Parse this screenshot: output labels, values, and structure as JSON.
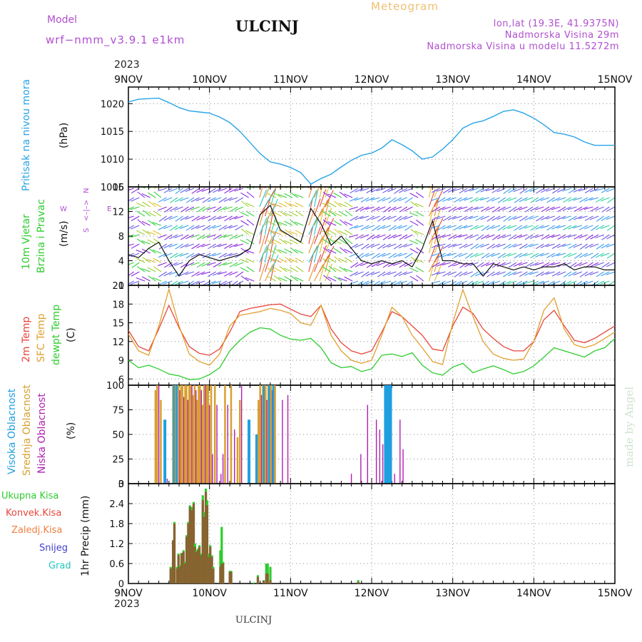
{
  "header": {
    "model_label": "Model",
    "model_name": "wrf−nmm_v3.9.1  e1km",
    "station": "ULCINJ",
    "product": "Meteogram",
    "lonlat": "lon,lat (19.3E, 41.9375N)",
    "elevation": "Nadmorska Visina 29m",
    "model_elevation": "Nadmorska Visina u modelu 11.5272m",
    "watermark": "made by Angel",
    "footer": "ULCINJ"
  },
  "time_axis": {
    "year": "2023",
    "day_labels": [
      "9NOV",
      "10NOV",
      "11NOV",
      "12NOV",
      "13NOV",
      "14NOV",
      "15NOV"
    ],
    "range_hours": [
      0,
      144
    ]
  },
  "colors": {
    "pressure": "#29a3e6",
    "wind_axis_label": "#2ecc2e",
    "wind_dir_label": "#b04fd0",
    "t2m": "#e8453c",
    "sfc": "#e0a030",
    "dew": "#2ecc2e",
    "cloud_high": "#1e9fe0",
    "cloud_mid": "#d8a030",
    "cloud_low": "#b020b0",
    "precip_total": "#2ecc2e",
    "precip_conv": "#e8453c",
    "precip_frozen": "#f08040",
    "precip_snow": "#4040d0",
    "precip_graupel": "#20c8c0",
    "header_purple": "#b04fd0",
    "header_orange": "#f0c070"
  },
  "chart_data": [
    {
      "id": "pressure",
      "type": "line",
      "ylabel_main": "Pritisak na nivou mora",
      "ylabel_unit": "(hPa)",
      "ylim": [
        1005,
        1023
      ],
      "yticks": [
        1005,
        1010,
        1015,
        1020
      ],
      "grid": true,
      "x": [
        0,
        3,
        6,
        9,
        12,
        15,
        18,
        21,
        24,
        27,
        30,
        33,
        36,
        39,
        42,
        45,
        48,
        51,
        54,
        57,
        60,
        63,
        66,
        69,
        72,
        75,
        78,
        81,
        84,
        87,
        90,
        93,
        96,
        99,
        102,
        105,
        108,
        111,
        114,
        117,
        120,
        123,
        126,
        129,
        132,
        135,
        138,
        141,
        144
      ],
      "y": [
        1020.3,
        1020.8,
        1020.9,
        1021.0,
        1020.2,
        1019.3,
        1018.7,
        1018.5,
        1018.3,
        1017.6,
        1016.6,
        1015.0,
        1013.0,
        1011.0,
        1009.5,
        1009.1,
        1008.5,
        1007.6,
        1005.5,
        1006.5,
        1007.3,
        1008.6,
        1009.8,
        1010.7,
        1011.1,
        1012.0,
        1013.5,
        1012.6,
        1011.5,
        1010.0,
        1010.4,
        1011.8,
        1013.5,
        1015.6,
        1016.5,
        1016.9,
        1017.7,
        1018.6,
        1018.9,
        1018.3,
        1017.4,
        1016.2,
        1014.8,
        1014.5,
        1014.0,
        1013.1,
        1012.5,
        1012.5,
        1012.5
      ]
    },
    {
      "id": "wind",
      "type": "line",
      "ylabel_main": "10m Vjetar",
      "ylabel_sub": "Brzina i Pravac",
      "ylabel_unit": "(m/s)",
      "compass": [
        "N",
        "W",
        "<–|–>",
        "E",
        "S"
      ],
      "ylim": [
        0,
        16
      ],
      "yticks": [
        0,
        4,
        8,
        12,
        16
      ],
      "grid": true,
      "x": [
        0,
        3,
        6,
        9,
        12,
        15,
        18,
        21,
        24,
        27,
        30,
        33,
        36,
        39,
        42,
        45,
        48,
        51,
        54,
        57,
        60,
        63,
        66,
        69,
        72,
        75,
        78,
        81,
        84,
        87,
        90,
        93,
        96,
        99,
        102,
        105,
        108,
        111,
        114,
        117,
        120,
        123,
        126,
        129,
        132,
        135,
        138,
        141,
        144
      ],
      "speed": [
        5.0,
        4.5,
        6.0,
        7.0,
        4.0,
        1.5,
        4.0,
        5.0,
        4.5,
        4.0,
        4.5,
        5.0,
        6.0,
        11.5,
        13.0,
        9.0,
        8.0,
        7.0,
        12.5,
        10.0,
        6.5,
        8.0,
        6.0,
        4.0,
        3.5,
        4.0,
        3.5,
        4.0,
        3.0,
        6.0,
        10.5,
        4.0,
        4.0,
        3.5,
        3.5,
        1.5,
        3.5,
        3.0,
        2.5,
        3.0,
        2.5,
        3.0,
        3.0,
        3.5,
        2.5,
        3.0,
        3.0,
        2.5,
        2.5
      ]
    },
    {
      "id": "temperature",
      "type": "line",
      "ylabel_series": [
        "2m Temp",
        "SFC Temp",
        "dewpt Temp"
      ],
      "ylabel_unit": "(C)",
      "ylim": [
        5,
        21
      ],
      "yticks": [
        6,
        9,
        12,
        15,
        18,
        21
      ],
      "grid": true,
      "x": [
        0,
        3,
        6,
        9,
        12,
        15,
        18,
        21,
        24,
        27,
        30,
        33,
        36,
        39,
        42,
        45,
        48,
        51,
        54,
        57,
        60,
        63,
        66,
        69,
        72,
        75,
        78,
        81,
        84,
        87,
        90,
        93,
        96,
        99,
        102,
        105,
        108,
        111,
        114,
        117,
        120,
        123,
        126,
        129,
        132,
        135,
        138,
        141,
        144
      ],
      "series": [
        {
          "key": "t2m",
          "values": [
            13.8,
            11.2,
            10.5,
            14.0,
            17.8,
            14.2,
            11.2,
            10.1,
            9.8,
            10.8,
            13.5,
            16.8,
            17.3,
            17.6,
            17.9,
            18.0,
            17.2,
            16.4,
            16.0,
            17.8,
            14.0,
            11.8,
            10.5,
            10.0,
            10.5,
            13.5,
            16.8,
            16.0,
            14.5,
            13.0,
            10.8,
            10.5,
            14.5,
            17.5,
            16.5,
            14.0,
            12.5,
            11.2,
            10.5,
            10.5,
            12.0,
            15.5,
            17.0,
            14.5,
            12.2,
            11.8,
            12.5,
            13.5,
            14.5
          ]
        },
        {
          "key": "sfc",
          "values": [
            13.2,
            10.5,
            9.8,
            14.5,
            20.4,
            14.5,
            10.0,
            8.8,
            8.2,
            10.0,
            14.5,
            16.2,
            16.5,
            16.8,
            17.3,
            17.0,
            16.5,
            15.0,
            14.6,
            17.8,
            13.0,
            10.5,
            9.0,
            8.5,
            9.0,
            13.0,
            17.5,
            16.0,
            13.0,
            11.0,
            8.8,
            8.3,
            15.0,
            20.3,
            16.0,
            12.0,
            10.0,
            9.3,
            9.0,
            9.2,
            12.0,
            17.0,
            19.0,
            14.0,
            11.5,
            11.0,
            11.5,
            12.5,
            13.5
          ]
        },
        {
          "key": "dew",
          "values": [
            9.0,
            7.8,
            8.2,
            7.6,
            6.8,
            6.5,
            5.9,
            6.0,
            6.7,
            7.8,
            10.5,
            12.2,
            13.5,
            14.2,
            14.0,
            13.0,
            12.4,
            12.2,
            12.5,
            11.0,
            8.6,
            7.8,
            8.0,
            7.2,
            7.6,
            9.8,
            10.0,
            9.6,
            10.2,
            8.2,
            7.0,
            6.6,
            7.9,
            8.5,
            7.0,
            7.6,
            8.1,
            7.5,
            6.8,
            7.2,
            8.1,
            9.5,
            11.0,
            10.5,
            10.0,
            9.5,
            10.5,
            11.0,
            12.5
          ]
        }
      ]
    },
    {
      "id": "clouds",
      "type": "bar",
      "ylabel_series": [
        "Visoka Oblacnost",
        "Srednja Oblacnost",
        "Niska Oblacnost"
      ],
      "ylabel_unit": "(%)",
      "ylim": [
        0,
        100
      ],
      "yticks": [
        0,
        25,
        50,
        75,
        100
      ],
      "grid": true,
      "bars": [
        {
          "x": 8.0,
          "series": "cloud_mid",
          "v": 95
        },
        {
          "x": 8.5,
          "series": "cloud_mid",
          "v": 100
        },
        {
          "x": 9.0,
          "series": "cloud_low",
          "v": 100
        },
        {
          "x": 9.6,
          "series": "cloud_mid",
          "v": 85
        },
        {
          "x": 10.8,
          "series": "cloud_high",
          "v": 65
        },
        {
          "x": 11.5,
          "series": "cloud_low",
          "v": 5
        },
        {
          "x": 13.2,
          "series": "cloud_mid",
          "v": 100
        },
        {
          "x": 13.6,
          "series": "cloud_high",
          "v": 100
        },
        {
          "x": 14.0,
          "series": "cloud_mid",
          "v": 100
        },
        {
          "x": 14.4,
          "series": "cloud_high",
          "v": 100
        },
        {
          "x": 14.8,
          "series": "cloud_mid",
          "v": 100
        },
        {
          "x": 15.2,
          "series": "cloud_low",
          "v": 95
        },
        {
          "x": 15.6,
          "series": "cloud_mid",
          "v": 100
        },
        {
          "x": 16.0,
          "series": "cloud_mid",
          "v": 100
        },
        {
          "x": 16.4,
          "series": "cloud_low",
          "v": 88
        },
        {
          "x": 16.8,
          "series": "cloud_mid",
          "v": 100
        },
        {
          "x": 17.2,
          "series": "cloud_mid",
          "v": 100
        },
        {
          "x": 17.6,
          "series": "cloud_low",
          "v": 85
        },
        {
          "x": 18.0,
          "series": "cloud_mid",
          "v": 100
        },
        {
          "x": 18.4,
          "series": "cloud_mid",
          "v": 100
        },
        {
          "x": 18.8,
          "series": "cloud_low",
          "v": 100
        },
        {
          "x": 19.2,
          "series": "cloud_mid",
          "v": 90
        },
        {
          "x": 19.6,
          "series": "cloud_mid",
          "v": 100
        },
        {
          "x": 20.0,
          "series": "cloud_low",
          "v": 95
        },
        {
          "x": 20.4,
          "series": "cloud_mid",
          "v": 85
        },
        {
          "x": 20.8,
          "series": "cloud_mid",
          "v": 100
        },
        {
          "x": 21.2,
          "series": "cloud_mid",
          "v": 100
        },
        {
          "x": 21.6,
          "series": "cloud_low",
          "v": 95
        },
        {
          "x": 22.0,
          "series": "cloud_mid",
          "v": 80
        },
        {
          "x": 22.4,
          "series": "cloud_mid",
          "v": 100
        },
        {
          "x": 22.8,
          "series": "cloud_low",
          "v": 100
        },
        {
          "x": 23.2,
          "series": "cloud_mid",
          "v": 100
        },
        {
          "x": 23.6,
          "series": "cloud_mid",
          "v": 100
        },
        {
          "x": 24.0,
          "series": "cloud_low",
          "v": 80
        },
        {
          "x": 24.5,
          "series": "cloud_mid",
          "v": 100
        },
        {
          "x": 24.9,
          "series": "cloud_low",
          "v": 30
        },
        {
          "x": 25.6,
          "series": "cloud_mid",
          "v": 100
        },
        {
          "x": 26.2,
          "series": "cloud_low",
          "v": 80
        },
        {
          "x": 27.4,
          "series": "cloud_low",
          "v": 10
        },
        {
          "x": 28.0,
          "series": "cloud_low",
          "v": 30
        },
        {
          "x": 28.6,
          "series": "cloud_mid",
          "v": 100
        },
        {
          "x": 29.4,
          "series": "cloud_low",
          "v": 80
        },
        {
          "x": 30.4,
          "series": "cloud_mid",
          "v": 100
        },
        {
          "x": 31.4,
          "series": "cloud_low",
          "v": 55
        },
        {
          "x": 32.3,
          "series": "cloud_mid",
          "v": 47
        },
        {
          "x": 33.0,
          "series": "cloud_mid",
          "v": 85
        },
        {
          "x": 33.5,
          "series": "cloud_low",
          "v": 100
        },
        {
          "x": 35.7,
          "series": "cloud_high",
          "v": 65
        },
        {
          "x": 38.0,
          "series": "cloud_high",
          "v": 50
        },
        {
          "x": 38.5,
          "series": "cloud_mid",
          "v": 85
        },
        {
          "x": 39.0,
          "series": "cloud_mid",
          "v": 100
        },
        {
          "x": 39.4,
          "series": "cloud_low",
          "v": 90
        },
        {
          "x": 39.8,
          "series": "cloud_mid",
          "v": 100
        },
        {
          "x": 40.2,
          "series": "cloud_high",
          "v": 100
        },
        {
          "x": 40.6,
          "series": "cloud_mid",
          "v": 100
        },
        {
          "x": 41.0,
          "series": "cloud_low",
          "v": 85
        },
        {
          "x": 41.4,
          "series": "cloud_mid",
          "v": 100
        },
        {
          "x": 41.8,
          "series": "cloud_high",
          "v": 100
        },
        {
          "x": 42.2,
          "series": "cloud_mid",
          "v": 100
        },
        {
          "x": 42.6,
          "series": "cloud_low",
          "v": 95
        },
        {
          "x": 43.0,
          "series": "cloud_high",
          "v": 100
        },
        {
          "x": 43.4,
          "series": "cloud_mid",
          "v": 100
        },
        {
          "x": 45.6,
          "series": "cloud_low",
          "v": 85
        },
        {
          "x": 47.2,
          "series": "cloud_low",
          "v": 90
        },
        {
          "x": 66.0,
          "series": "cloud_low",
          "v": 10
        },
        {
          "x": 68.8,
          "series": "cloud_low",
          "v": 30
        },
        {
          "x": 70.8,
          "series": "cloud_low",
          "v": 80
        },
        {
          "x": 73.4,
          "series": "cloud_low",
          "v": 65
        },
        {
          "x": 74.4,
          "series": "cloud_low",
          "v": 55
        },
        {
          "x": 75.3,
          "series": "cloud_low",
          "v": 40
        },
        {
          "x": 76.1,
          "series": "cloud_high",
          "v": 100
        },
        {
          "x": 76.6,
          "series": "cloud_high",
          "v": 100
        },
        {
          "x": 77.1,
          "series": "cloud_high",
          "v": 100
        },
        {
          "x": 77.6,
          "series": "cloud_high",
          "v": 100
        },
        {
          "x": 78.8,
          "series": "cloud_low",
          "v": 10
        },
        {
          "x": 80.4,
          "series": "cloud_low",
          "v": 65
        },
        {
          "x": 81.3,
          "series": "cloud_low",
          "v": 35
        }
      ]
    },
    {
      "id": "precip",
      "type": "bar",
      "ylabel_series": [
        "Ukupna Kisa",
        "Konvek.Kisa",
        "Zaledj.Kisa",
        "Snijeg",
        "Grad"
      ],
      "ylabel_unit": "1hr Precip (mm)",
      "ylim": [
        0,
        3
      ],
      "yticks": [
        0,
        0.6,
        1.2,
        1.8,
        2.4,
        3
      ],
      "grid": true,
      "bars": [
        {
          "x": 12.5,
          "total": 0.5,
          "conv": 0.45
        },
        {
          "x": 13.2,
          "total": 1.3,
          "conv": 1.3
        },
        {
          "x": 13.6,
          "total": 1.85,
          "conv": 1.8
        },
        {
          "x": 14.4,
          "total": 0.5,
          "conv": 0.45
        },
        {
          "x": 14.8,
          "total": 0.9,
          "conv": 0.85
        },
        {
          "x": 15.2,
          "total": 0.55,
          "conv": 0.5
        },
        {
          "x": 15.7,
          "total": 0.92,
          "conv": 0.9
        },
        {
          "x": 16.3,
          "total": 1.0,
          "conv": 0.95
        },
        {
          "x": 16.7,
          "total": 0.65,
          "conv": 0.6
        },
        {
          "x": 17.2,
          "total": 1.45,
          "conv": 1.4
        },
        {
          "x": 17.7,
          "total": 1.85,
          "conv": 1.8
        },
        {
          "x": 18.2,
          "total": 2.35,
          "conv": 2.3
        },
        {
          "x": 18.8,
          "total": 2.3,
          "conv": 2.2
        },
        {
          "x": 19.3,
          "total": 2.45,
          "conv": 2.4
        },
        {
          "x": 19.7,
          "total": 1.2,
          "conv": 1.1
        },
        {
          "x": 20.1,
          "total": 1.0,
          "conv": 0.95
        },
        {
          "x": 20.6,
          "total": 1.05,
          "conv": 1.0
        },
        {
          "x": 21.0,
          "total": 1.15,
          "conv": 1.1
        },
        {
          "x": 21.5,
          "total": 0.9,
          "conv": 0.85
        },
        {
          "x": 22.0,
          "total": 2.65,
          "conv": 2.5
        },
        {
          "x": 22.4,
          "total": 2.15,
          "conv": 2.0
        },
        {
          "x": 22.9,
          "total": 2.85,
          "conv": 2.75
        },
        {
          "x": 23.3,
          "total": 2.5,
          "conv": 2.35
        },
        {
          "x": 23.8,
          "total": 0.9,
          "conv": 0.8
        },
        {
          "x": 24.2,
          "total": 1.15,
          "conv": 1.1
        },
        {
          "x": 24.7,
          "total": 0.85,
          "conv": 0.8
        },
        {
          "x": 25.1,
          "total": 0.5,
          "conv": 0.45
        },
        {
          "x": 27.2,
          "total": 1.0,
          "conv": 0.5
        },
        {
          "x": 27.6,
          "total": 1.7,
          "conv": 0.6
        },
        {
          "x": 28.0,
          "total": 0.65,
          "conv": 0.6
        },
        {
          "x": 30.0,
          "total": 0.38,
          "conv": 0.35
        },
        {
          "x": 30.4,
          "total": 0.38,
          "conv": 0.35
        },
        {
          "x": 37.0,
          "total": 0.03,
          "conv": 0.0
        },
        {
          "x": 38.3,
          "total": 0.25,
          "conv": 0.2
        },
        {
          "x": 40.0,
          "total": 0.1,
          "conv": 0.08
        },
        {
          "x": 40.8,
          "total": 0.6,
          "conv": 0.3
        },
        {
          "x": 41.2,
          "total": 0.6,
          "conv": 0.3
        },
        {
          "x": 42.0,
          "total": 0.5,
          "conv": 0.1
        },
        {
          "x": 68.0,
          "total": 0.1,
          "conv": 0.05
        }
      ]
    }
  ]
}
